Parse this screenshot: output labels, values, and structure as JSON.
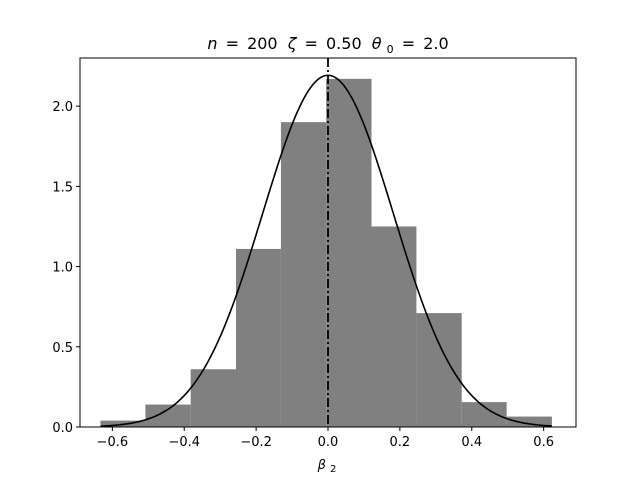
{
  "chart_data": {
    "type": "bar",
    "title": {
      "n_label": "n",
      "n_value": "200",
      "zeta_label": "ζ",
      "zeta_value": "0.50",
      "theta_label": "θ",
      "theta_sub": "0",
      "theta_value": "2.0"
    },
    "xlabel": {
      "main": "β",
      "sub": "2"
    },
    "ylabel": "",
    "xlim": [
      -0.69,
      0.69
    ],
    "ylim": [
      0.0,
      2.3
    ],
    "xticks": [
      -0.6,
      -0.4,
      -0.2,
      0.0,
      0.2,
      0.4,
      0.6
    ],
    "xtick_labels": [
      "−0.6",
      "−0.4",
      "−0.2",
      "0.0",
      "0.2",
      "0.4",
      "0.6"
    ],
    "yticks": [
      0.0,
      0.5,
      1.0,
      1.5,
      2.0
    ],
    "ytick_labels": [
      "0.0",
      "0.5",
      "1.0",
      "1.5",
      "2.0"
    ],
    "bin_edges": [
      -0.633,
      -0.508,
      -0.382,
      -0.256,
      -0.131,
      -0.005,
      0.121,
      0.246,
      0.372,
      0.497,
      0.623
    ],
    "values": [
      0.04,
      0.14,
      0.36,
      1.11,
      1.9,
      2.17,
      1.25,
      0.71,
      0.155,
      0.065
    ],
    "density_curve": {
      "mean": 0.0,
      "sd": 0.182,
      "x_range": [
        -0.633,
        0.623
      ]
    },
    "vline_x": 0.0,
    "grid": false,
    "colors": {
      "bars": "#808080",
      "curve": "#000000",
      "vline": "#000000"
    }
  }
}
